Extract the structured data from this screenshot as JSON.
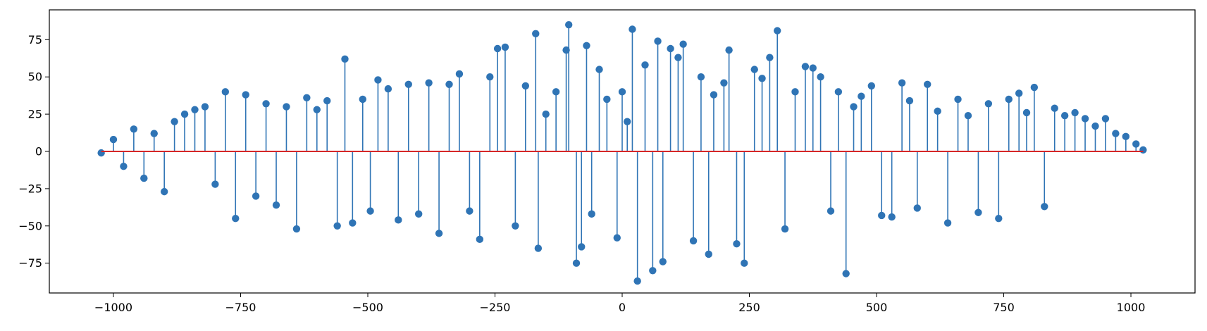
{
  "chart_data": {
    "type": "stem",
    "title": "",
    "xlabel": "",
    "ylabel": "",
    "xlim": [
      -1126,
      1126
    ],
    "ylim": [
      -95,
      95
    ],
    "xticks": [
      -1000,
      -750,
      -500,
      -250,
      0,
      250,
      500,
      750,
      1000
    ],
    "xtick_labels": [
      "−1000",
      "−750",
      "−500",
      "−250",
      "0",
      "250",
      "500",
      "750",
      "1000"
    ],
    "yticks": [
      -75,
      -50,
      -25,
      0,
      25,
      50,
      75
    ],
    "ytick_labels": [
      "−75",
      "−50",
      "−25",
      "0",
      "25",
      "50",
      "75"
    ],
    "grid": false,
    "colors": {
      "stem": "#2f74b5",
      "baseline": "#d62728",
      "axes": "#000000"
    },
    "series": [
      {
        "x": [
          -1024,
          -1000,
          -980,
          -960,
          -940,
          -920,
          -900,
          -880,
          -860,
          -840,
          -820,
          -800,
          -780,
          -760,
          -740,
          -720,
          -700,
          -680,
          -660,
          -640,
          -620,
          -600,
          -580,
          -560,
          -545,
          -530,
          -510,
          -495,
          -480,
          -460,
          -440,
          -420,
          -400,
          -380,
          -360,
          -340,
          -320,
          -300,
          -280,
          -260,
          -245,
          -230,
          -210,
          -190,
          -170,
          -165,
          -150,
          -130,
          -110,
          -105,
          -90,
          -80,
          -70,
          -60,
          -45,
          -30,
          -10,
          0,
          10,
          20,
          30,
          45,
          60,
          70,
          80,
          95,
          110,
          120,
          140,
          155,
          170,
          180,
          200,
          210,
          225,
          240,
          260,
          275,
          290,
          305,
          320,
          340,
          360,
          375,
          390,
          410,
          425,
          440,
          455,
          470,
          490,
          510,
          530,
          550,
          565,
          580,
          600,
          620,
          640,
          660,
          680,
          700,
          720,
          740,
          760,
          780,
          795,
          810,
          830,
          850,
          870,
          890,
          910,
          930,
          950,
          970,
          990,
          1010,
          1024
        ],
        "values": [
          -1,
          8,
          -10,
          15,
          -18,
          12,
          -27,
          20,
          25,
          28,
          30,
          -22,
          40,
          -45,
          38,
          -30,
          32,
          -36,
          30,
          -52,
          36,
          28,
          34,
          -50,
          62,
          -48,
          35,
          -40,
          48,
          42,
          -46,
          45,
          -42,
          46,
          -55,
          45,
          52,
          -40,
          -59,
          50,
          69,
          70,
          -50,
          44,
          79,
          -65,
          25,
          40,
          68,
          85,
          -75,
          -64,
          71,
          -42,
          55,
          35,
          -58,
          40,
          20,
          82,
          -87,
          58,
          -80,
          74,
          -74,
          69,
          63,
          72,
          -60,
          50,
          -69,
          38,
          46,
          68,
          -62,
          -75,
          55,
          49,
          63,
          81,
          -52,
          40,
          57,
          56,
          50,
          -40,
          40,
          -82,
          30,
          37,
          44,
          -43,
          -44,
          46,
          34,
          -38,
          45,
          27,
          -48,
          35,
          24,
          -41,
          32,
          -45,
          35,
          39,
          26,
          43,
          -37,
          29,
          24,
          26,
          22,
          17,
          22,
          12,
          10,
          5,
          1
        ]
      }
    ]
  }
}
